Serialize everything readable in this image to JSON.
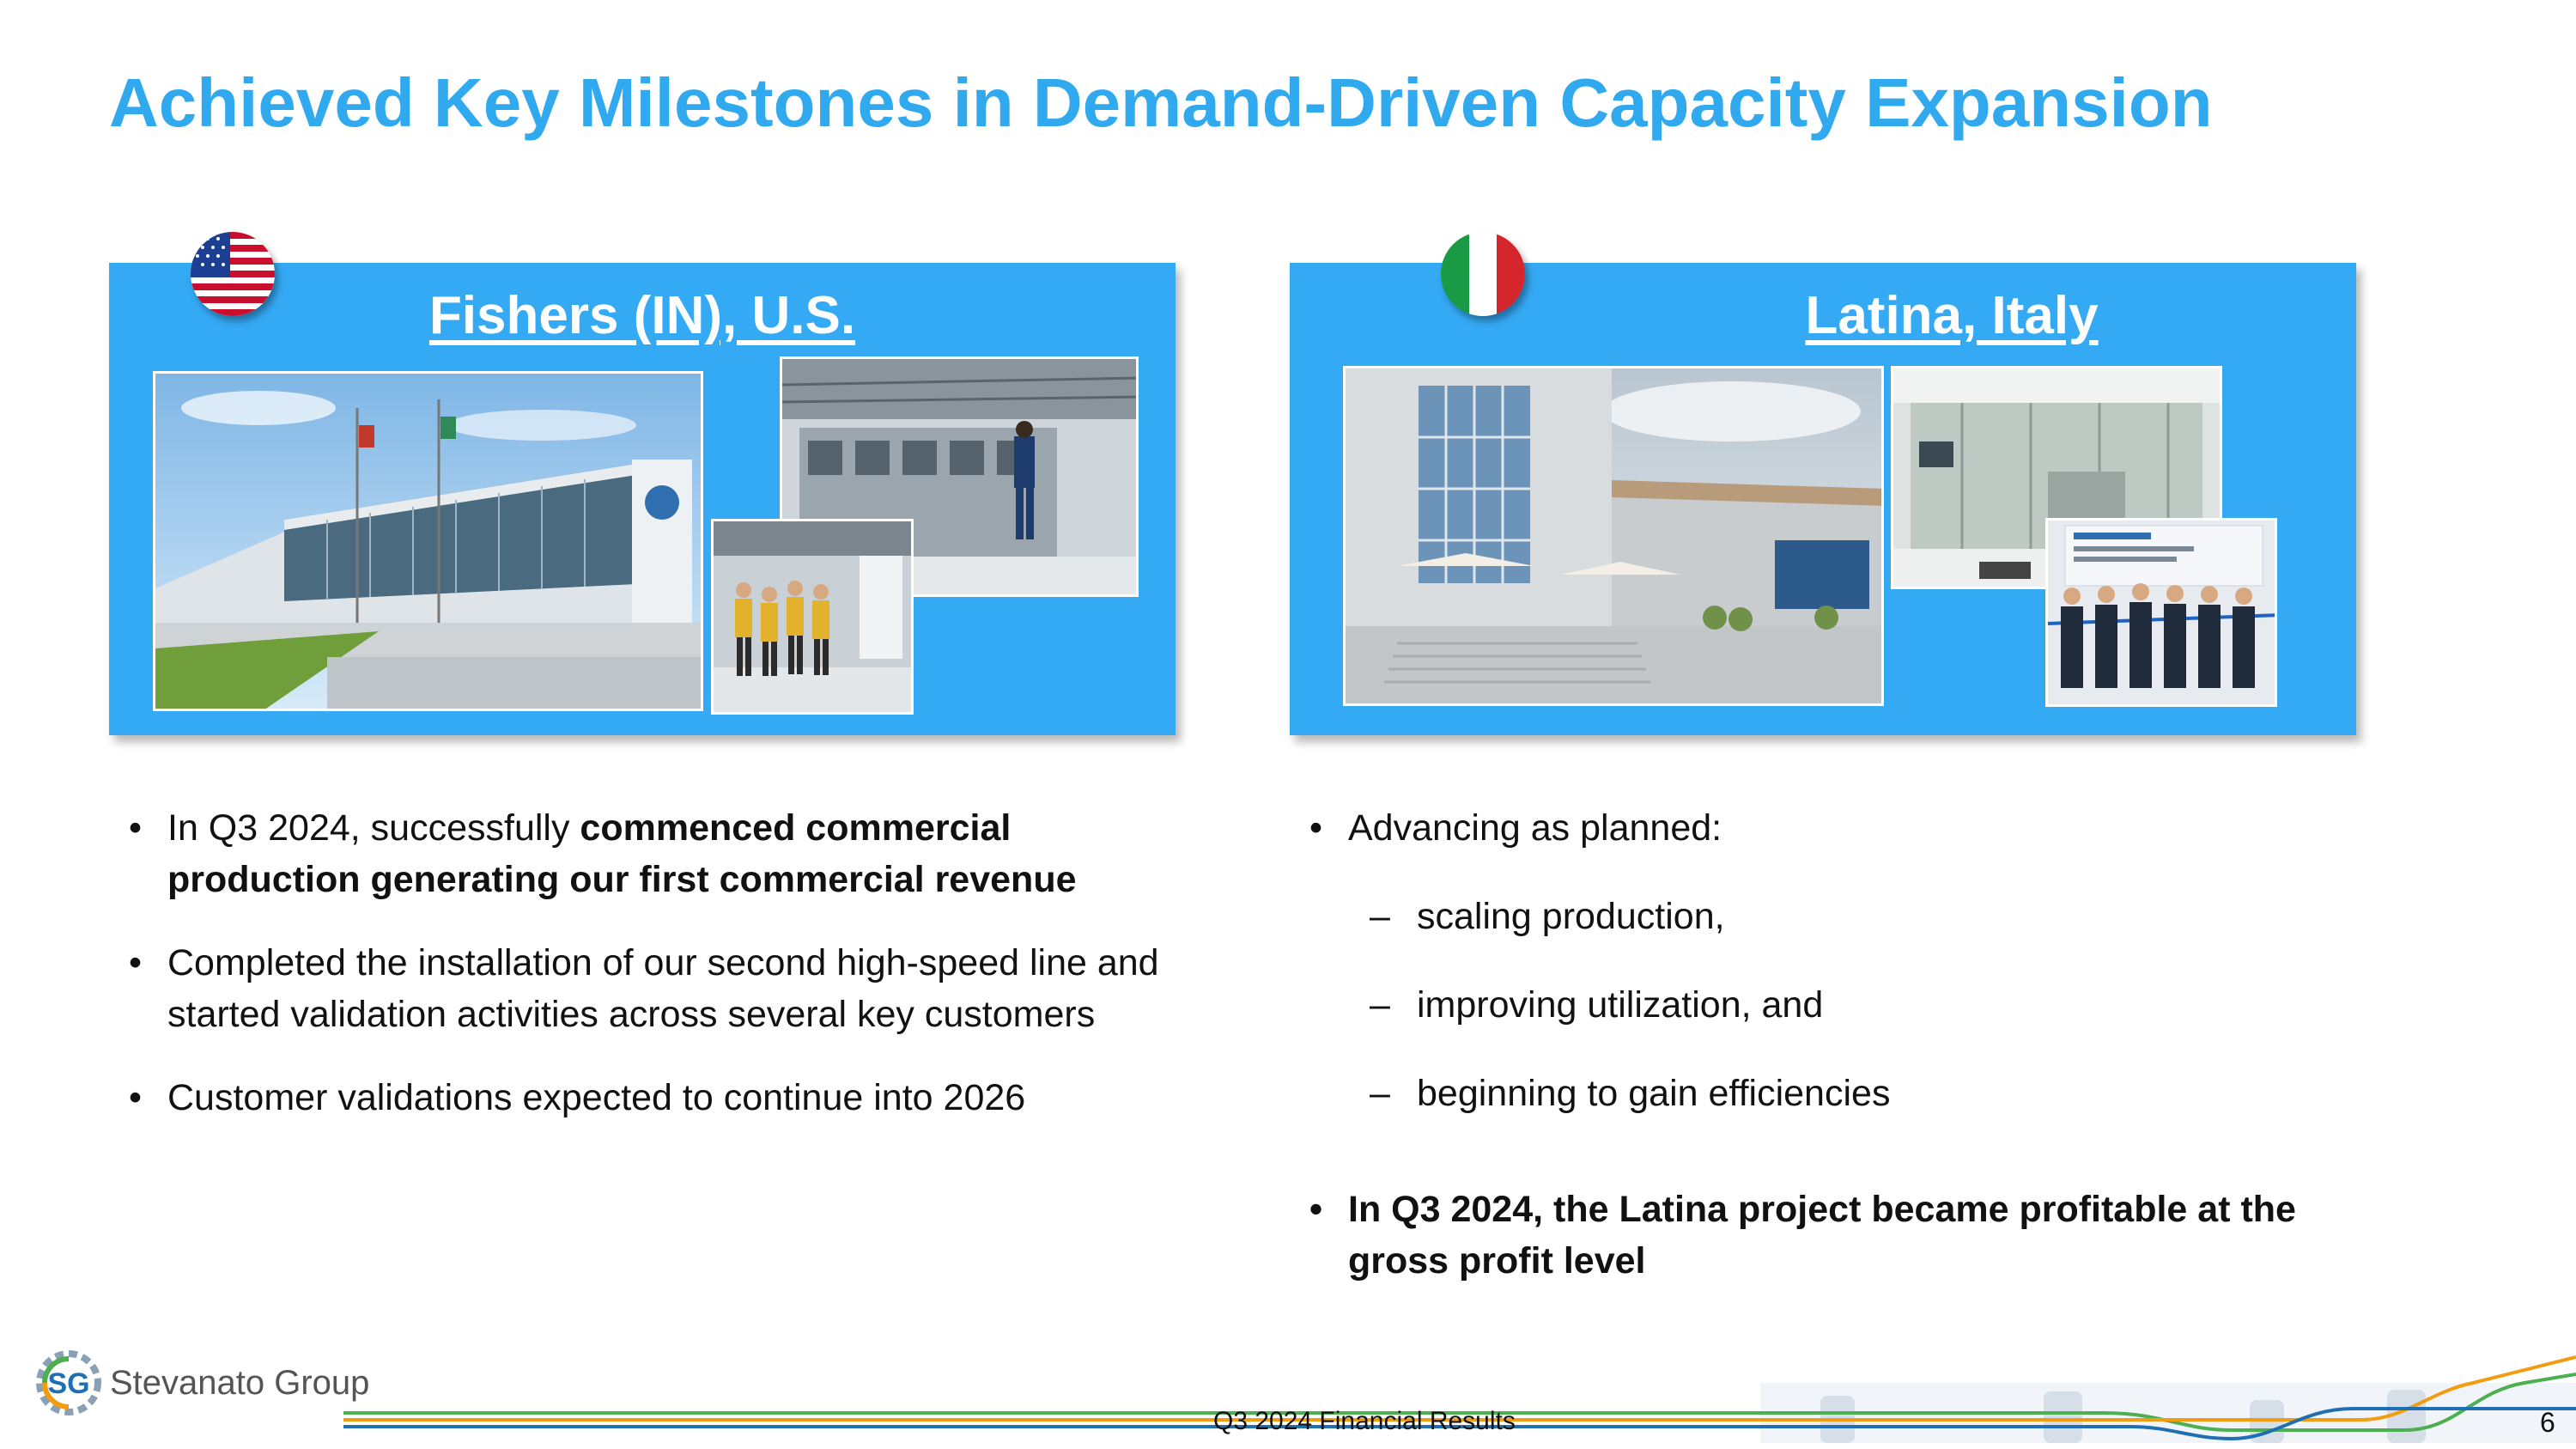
{
  "title": "Achieved Key Milestones in Demand-Driven Capacity Expansion",
  "left_panel": {
    "heading": "Fishers (IN), U.S.",
    "flag_icon": "us-flag-icon",
    "bullets": [
      {
        "normal": "In Q3 2024, successfully ",
        "bold": "commenced commercial production generating our first commercial revenue"
      },
      {
        "normal": "Completed the installation of our second high-speed line and started validation activities across several key customers",
        "bold": ""
      },
      {
        "normal": "Customer validations expected to continue into 2026",
        "bold": ""
      }
    ]
  },
  "right_panel": {
    "heading": "Latina, Italy",
    "flag_icon": "italy-flag-icon",
    "intro": "Advancing as planned:",
    "sub_items": [
      "scaling production,",
      "improving utilization, and",
      "beginning to gain efficiencies"
    ],
    "bold_bullet": "In Q3 2024, the Latina project became profitable at the gross profit level"
  },
  "footer": {
    "logo_mark": "SG",
    "logo_name": "Stevanato Group",
    "label": "Q3 2024 Financial Results",
    "page_number": "6"
  },
  "colors": {
    "title": "#30a9ef",
    "panel": "#34a9f4",
    "footer_green": "#4caf50",
    "footer_orange": "#f39c12",
    "footer_blue": "#1f6fb2"
  }
}
